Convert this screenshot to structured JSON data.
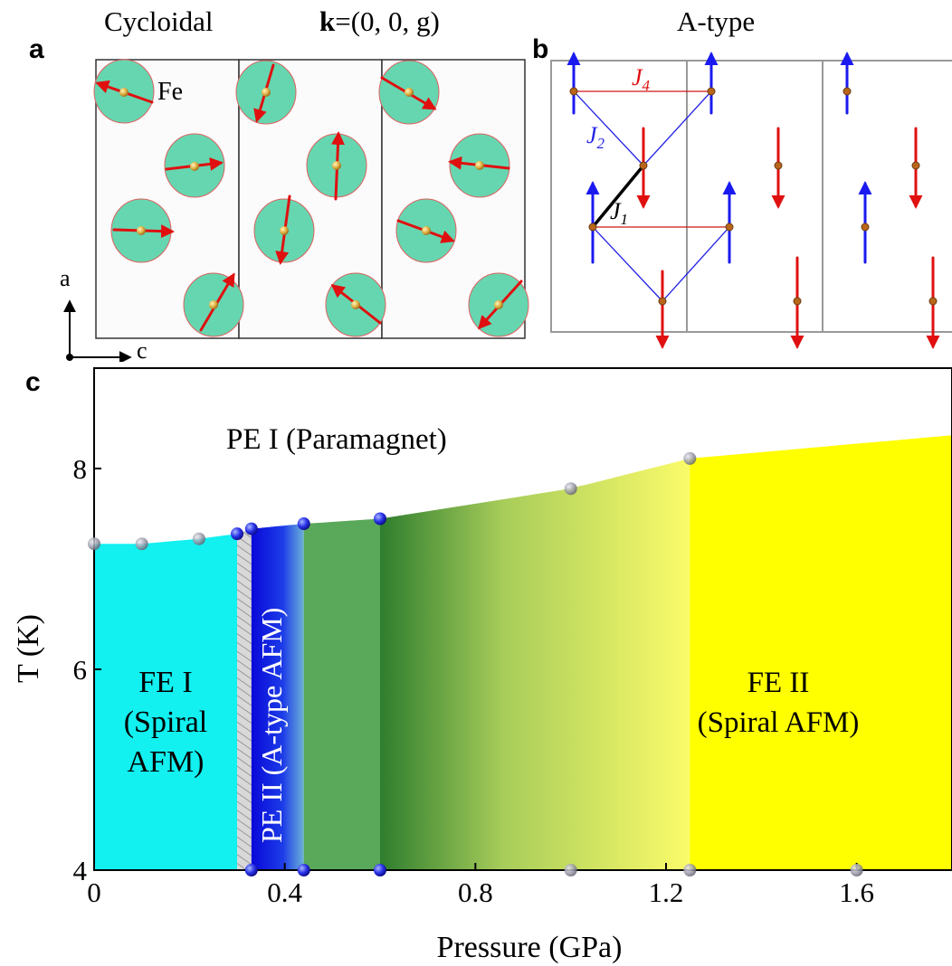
{
  "panel_a": {
    "letter": "a",
    "title": "Cycloidal",
    "kvector_bold": "k",
    "kvector_rest": "=(0, 0, g)",
    "atom_label": "Fe",
    "axis_a": "a",
    "axis_c": "c"
  },
  "panel_b": {
    "letter": "b",
    "title": "A-type",
    "j4": "J",
    "j4_sub": "4",
    "j2": "J",
    "j2_sub": "2",
    "j1": "J",
    "j1_sub": "1",
    "colors": {
      "spin_up": "#1a1af0",
      "spin_down": "#e01010",
      "bond_j1": "#000000",
      "bond_j2": "#2323e6",
      "bond_j4": "#d01818"
    }
  },
  "panel_c": {
    "letter": "c",
    "phase_labels": {
      "pe1": "PE I (Paramagnet)",
      "fe1_line1": "FE I",
      "fe1_line2": "(Spiral",
      "fe1_line3": "AFM)",
      "pe2": "PE II (A-type AFM)",
      "fe2_line1": "FE II",
      "fe2_line2": "(Spiral AFM)"
    },
    "colors": {
      "fe1": "#12f0f0",
      "pe2": "#1010e0",
      "green": "#5aa85a",
      "fe2": "#ffff00",
      "hatch": "#cfcfcf"
    }
  },
  "chart_data": {
    "type": "scatter",
    "xlabel": "Pressure (GPa)",
    "ylabel": "T (K)",
    "xlim": [
      0,
      1.8
    ],
    "ylim": [
      4,
      9.0
    ],
    "xticks": [
      "0",
      "0.4",
      "0.8",
      "1.2",
      "1.6"
    ],
    "yticks": [
      "4",
      "6",
      "8"
    ],
    "series": [
      {
        "points": [
          {
            "x": 0.0,
            "y": 7.25
          },
          {
            "x": 0.1,
            "y": 7.25
          },
          {
            "x": 0.22,
            "y": 7.3
          },
          {
            "x": 0.3,
            "y": 7.35
          },
          {
            "x": 0.33,
            "y": 7.4
          },
          {
            "x": 0.44,
            "y": 7.45
          },
          {
            "x": 0.6,
            "y": 7.5
          },
          {
            "x": 1.0,
            "y": 7.8
          },
          {
            "x": 1.25,
            "y": 8.1
          }
        ]
      },
      {
        "points": [
          {
            "x": 0.33,
            "y": 4.0
          },
          {
            "x": 0.44,
            "y": 4.0
          },
          {
            "x": 0.6,
            "y": 4.0
          },
          {
            "x": 1.0,
            "y": 4.0
          },
          {
            "x": 1.25,
            "y": 4.0
          },
          {
            "x": 1.6,
            "y": 4.0
          }
        ]
      }
    ],
    "phase_boundaries_gpa": [
      0.3,
      0.33,
      0.6,
      1.25
    ]
  }
}
